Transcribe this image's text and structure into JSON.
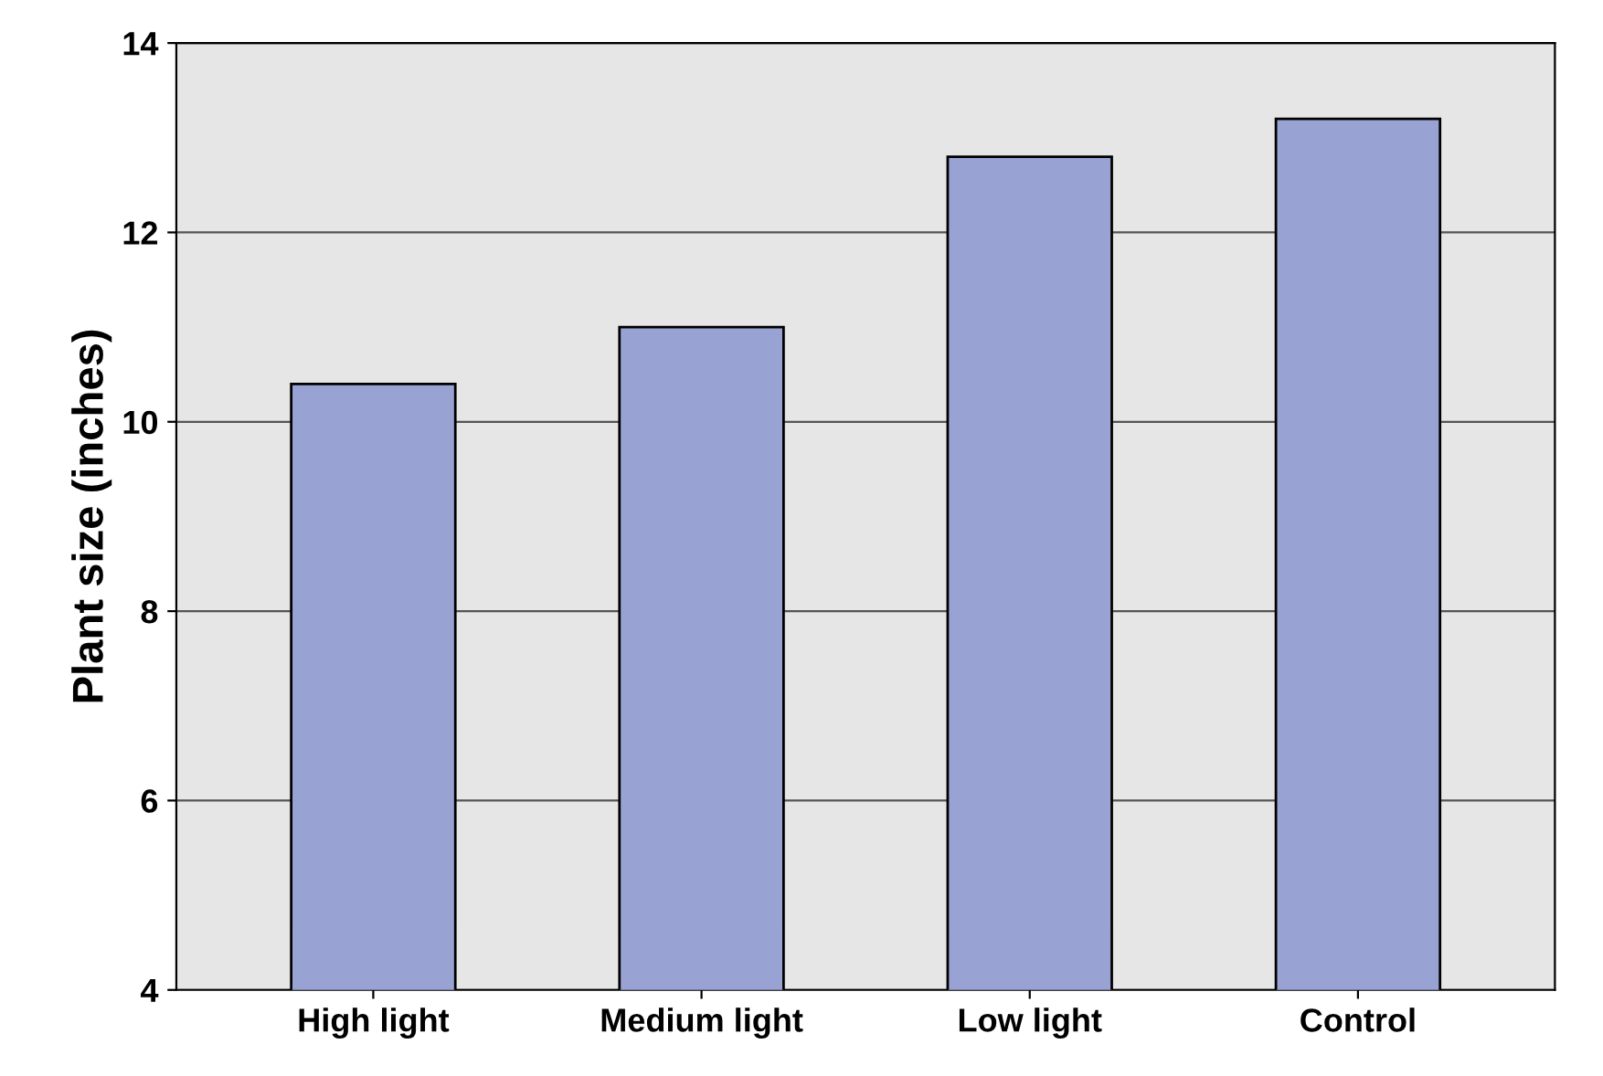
{
  "chart_data": {
    "type": "bar",
    "ylabel": "Plant size (inches)",
    "categories": [
      "High light",
      "Medium light",
      "Low light",
      "Control"
    ],
    "values": [
      10.4,
      11.0,
      12.8,
      13.2
    ],
    "color": "#99a3d3",
    "ylim": [
      4,
      14
    ],
    "yticks": [
      4,
      6,
      8,
      10,
      12,
      14
    ],
    "grid": "y"
  }
}
